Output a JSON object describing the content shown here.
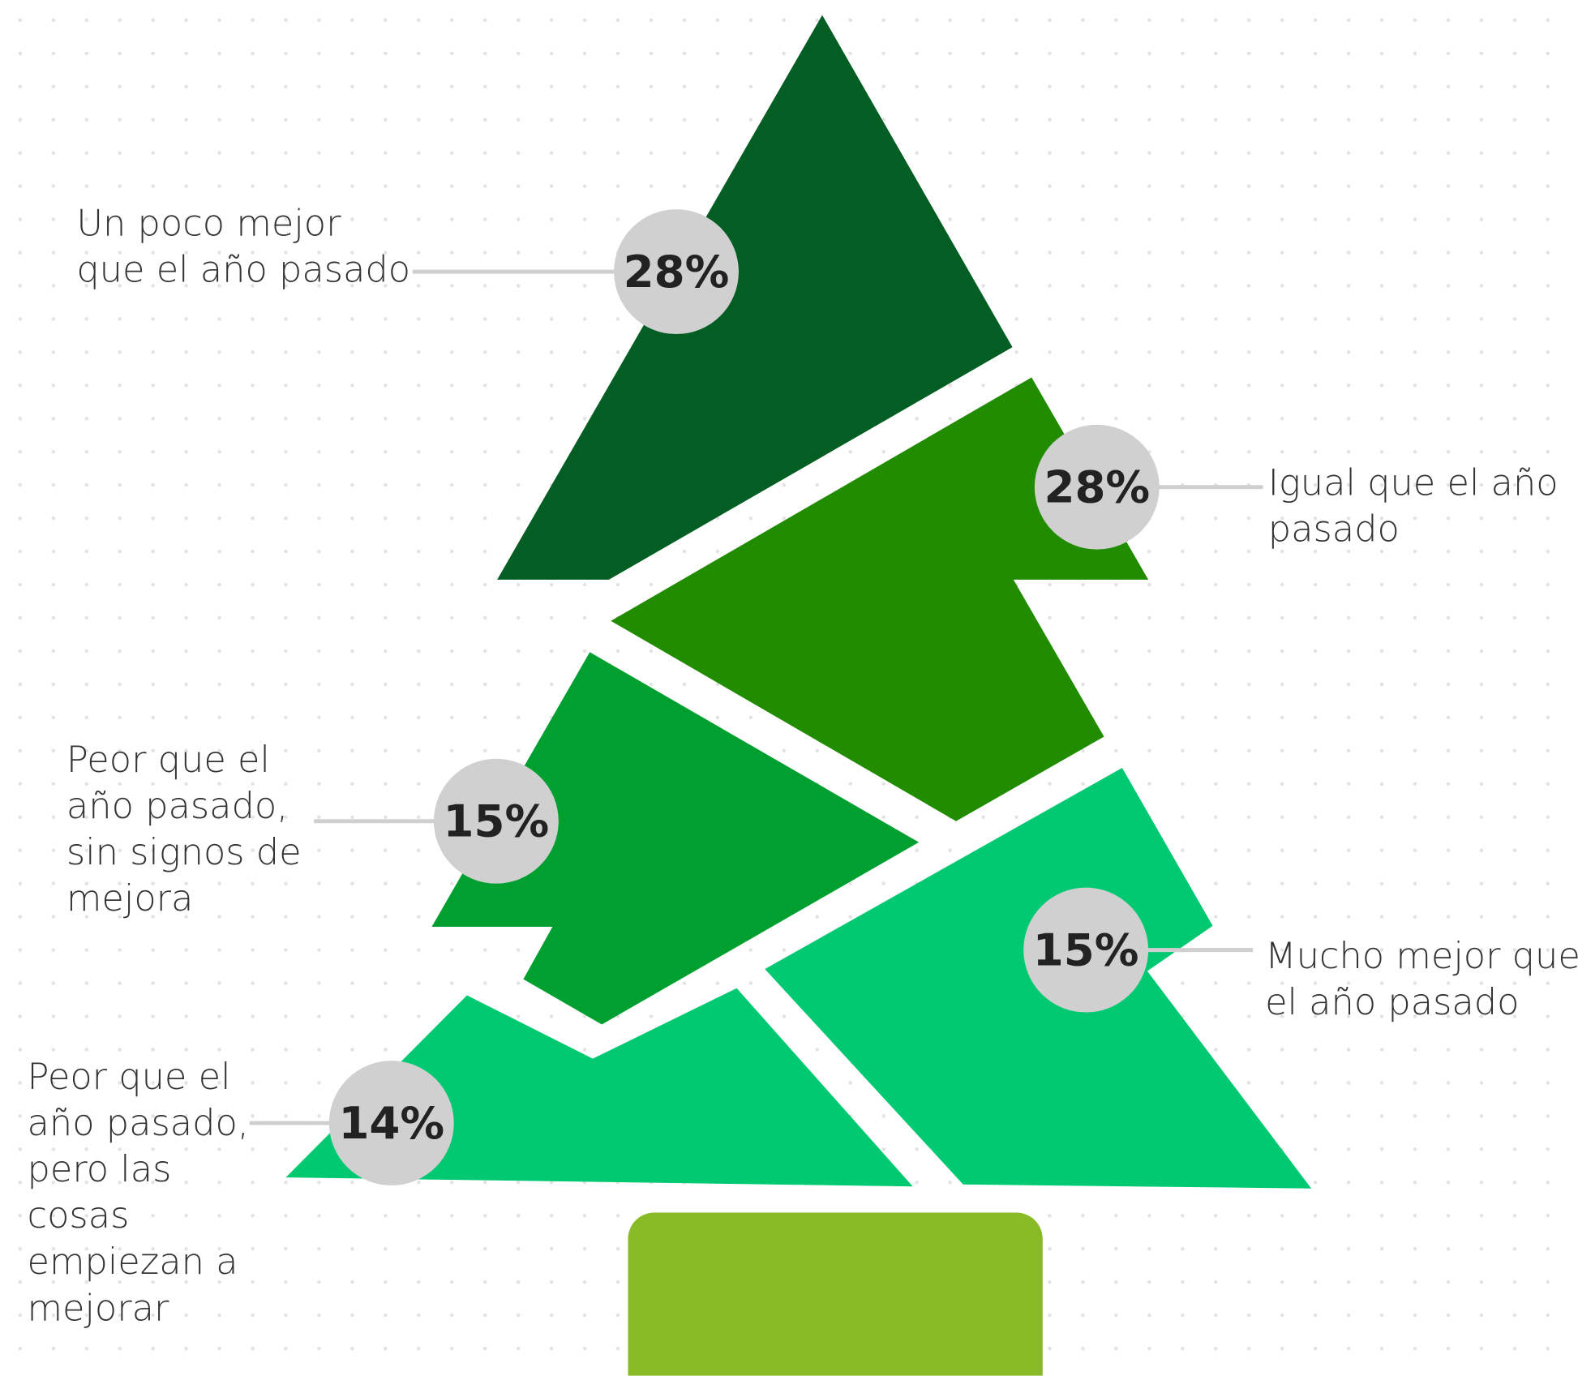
{
  "chart_data": {
    "type": "infographic",
    "categories": [
      "Un poco mejor que el año pasado",
      "Igual que el año pasado",
      "Peor que el año pasado, sin signos de mejora",
      "Mucho mejor que el año pasado",
      "Peor que el año pasado, pero las cosas empiezan a mejorar"
    ],
    "values": [
      28,
      28,
      15,
      15,
      14
    ],
    "value_labels": [
      "28%",
      "28%",
      "15%",
      "15%",
      "14%"
    ]
  }
}
